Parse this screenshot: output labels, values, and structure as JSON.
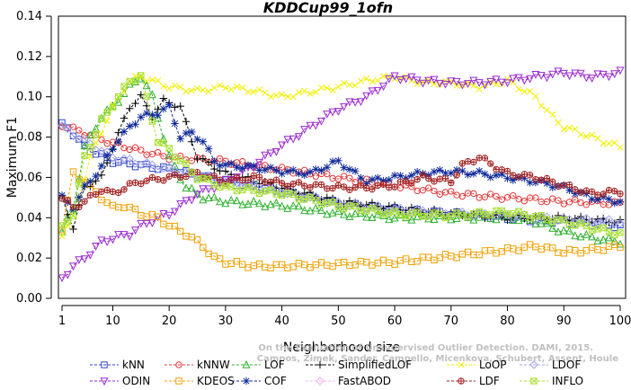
{
  "chart_data": {
    "type": "line",
    "title": "KDDCup99_1ofn",
    "xlabel": "Neighborhood size",
    "ylabel": "Maximum F1",
    "xlim": [
      1,
      100
    ],
    "ylim": [
      0,
      0.14
    ],
    "xticks": [
      1,
      10,
      20,
      30,
      40,
      50,
      60,
      70,
      80,
      90,
      100
    ],
    "yticks": [
      "0.00",
      "0.02",
      "0.04",
      "0.06",
      "0.08",
      "0.10",
      "0.12",
      "0.14"
    ],
    "grid": false,
    "legend_position": "bottom",
    "watermark": [
      "Campos, Zimek, Sander, Campello, Micenkova, Schubert, Assent, Houle",
      "On the Evaluation of Unsupervised Outlier Detection. DAMI, 2015."
    ],
    "series": [
      {
        "name": "kNN",
        "color": "#2a45c8",
        "marker": "square",
        "x": [
          1,
          2,
          5,
          10,
          15,
          20,
          30,
          40,
          50,
          60,
          70,
          80,
          90,
          100
        ],
        "y": [
          0.086,
          0.085,
          0.075,
          0.068,
          0.066,
          0.064,
          0.058,
          0.053,
          0.047,
          0.044,
          0.042,
          0.04,
          0.038,
          0.036
        ]
      },
      {
        "name": "kNNW",
        "color": "#e03a3a",
        "marker": "circle",
        "x": [
          1,
          5,
          10,
          15,
          20,
          30,
          40,
          50,
          60,
          70,
          80,
          90,
          100
        ],
        "y": [
          0.086,
          0.082,
          0.077,
          0.073,
          0.07,
          0.068,
          0.064,
          0.06,
          0.056,
          0.052,
          0.05,
          0.048,
          0.047
        ]
      },
      {
        "name": "LOF",
        "color": "#30b030",
        "marker": "triangle-up",
        "x": [
          1,
          3,
          5,
          8,
          10,
          13,
          15,
          17,
          20,
          23,
          26,
          30,
          40,
          50,
          60,
          70,
          80,
          85,
          90,
          95,
          100
        ],
        "y": [
          0.033,
          0.045,
          0.075,
          0.09,
          0.095,
          0.105,
          0.11,
          0.1,
          0.07,
          0.055,
          0.05,
          0.048,
          0.046,
          0.042,
          0.04,
          0.04,
          0.04,
          0.038,
          0.033,
          0.03,
          0.028
        ]
      },
      {
        "name": "SimplifiedLOF",
        "color": "#000000",
        "marker": "plus",
        "x": [
          1,
          3,
          5,
          8,
          10,
          13,
          15,
          17,
          19,
          22,
          25,
          30,
          40,
          50,
          60,
          70,
          80,
          90,
          100
        ],
        "y": [
          0.05,
          0.035,
          0.055,
          0.06,
          0.075,
          0.095,
          0.1,
          0.09,
          0.098,
          0.095,
          0.07,
          0.062,
          0.055,
          0.048,
          0.045,
          0.042,
          0.04,
          0.04,
          0.038
        ]
      },
      {
        "name": "LoOP",
        "color": "#f0f000",
        "marker": "x",
        "x": [
          1,
          3,
          6,
          10,
          13,
          15,
          17,
          20,
          25,
          30,
          35,
          40,
          50,
          55,
          60,
          65,
          70,
          75,
          80,
          85,
          88,
          90,
          95,
          100
        ],
        "y": [
          0.032,
          0.04,
          0.07,
          0.095,
          0.108,
          0.11,
          0.108,
          0.105,
          0.103,
          0.105,
          0.103,
          0.1,
          0.105,
          0.108,
          0.11,
          0.107,
          0.107,
          0.105,
          0.108,
          0.1,
          0.09,
          0.085,
          0.08,
          0.075
        ]
      },
      {
        "name": "LDOF",
        "color": "#a0a0e8",
        "marker": "diamond",
        "x": [
          1,
          5,
          10,
          15,
          20,
          30,
          40,
          50,
          60,
          70,
          80,
          90,
          100
        ],
        "y": [
          0.085,
          0.078,
          0.07,
          0.067,
          0.064,
          0.058,
          0.053,
          0.047,
          0.044,
          0.042,
          0.041,
          0.039,
          0.038
        ]
      },
      {
        "name": "ODIN",
        "color": "#9a2ad0",
        "marker": "triangle-down",
        "x": [
          1,
          3,
          5,
          8,
          10,
          13,
          15,
          18,
          20,
          25,
          30,
          35,
          40,
          45,
          50,
          55,
          60,
          65,
          70,
          75,
          80,
          85,
          90,
          95,
          100
        ],
        "y": [
          0.01,
          0.016,
          0.02,
          0.028,
          0.03,
          0.032,
          0.036,
          0.04,
          0.042,
          0.052,
          0.058,
          0.066,
          0.076,
          0.085,
          0.094,
          0.1,
          0.11,
          0.108,
          0.107,
          0.107,
          0.108,
          0.11,
          0.112,
          0.11,
          0.112
        ]
      },
      {
        "name": "KDEOS",
        "color": "#f0a000",
        "marker": "square",
        "x": [
          1,
          2,
          3,
          5,
          8,
          10,
          12,
          15,
          18,
          20,
          23,
          26,
          28,
          30,
          35,
          40,
          50,
          60,
          70,
          80,
          85,
          90,
          95,
          100
        ],
        "y": [
          0.035,
          0.048,
          0.062,
          0.058,
          0.05,
          0.045,
          0.046,
          0.042,
          0.04,
          0.036,
          0.032,
          0.026,
          0.02,
          0.018,
          0.016,
          0.016,
          0.017,
          0.018,
          0.021,
          0.024,
          0.026,
          0.023,
          0.024,
          0.026
        ]
      },
      {
        "name": "COF",
        "color": "#102a9a",
        "marker": "star",
        "x": [
          1,
          3,
          5,
          8,
          10,
          13,
          15,
          18,
          20,
          22,
          24,
          26,
          28,
          30,
          35,
          40,
          45,
          50,
          55,
          60,
          65,
          70,
          75,
          80,
          85,
          90,
          95,
          100
        ],
        "y": [
          0.05,
          0.045,
          0.055,
          0.065,
          0.075,
          0.085,
          0.09,
          0.092,
          0.095,
          0.08,
          0.082,
          0.078,
          0.068,
          0.066,
          0.065,
          0.063,
          0.062,
          0.068,
          0.058,
          0.06,
          0.062,
          0.063,
          0.062,
          0.06,
          0.058,
          0.055,
          0.05,
          0.048
        ]
      },
      {
        "name": "FastABOD",
        "color": "#f0b0f0",
        "marker": "diamond",
        "x": [],
        "y": []
      },
      {
        "name": "LDF",
        "color": "#a02020",
        "marker": "circle-plus",
        "x": [
          1,
          3,
          5,
          8,
          10,
          13,
          15,
          20,
          25,
          30,
          35,
          40,
          45,
          50,
          55,
          60,
          65,
          70,
          72,
          75,
          80,
          85,
          90,
          95,
          100
        ],
        "y": [
          0.05,
          0.045,
          0.048,
          0.054,
          0.052,
          0.056,
          0.058,
          0.06,
          0.062,
          0.058,
          0.06,
          0.057,
          0.056,
          0.055,
          0.055,
          0.056,
          0.06,
          0.058,
          0.066,
          0.07,
          0.062,
          0.06,
          0.056,
          0.052,
          0.053
        ]
      },
      {
        "name": "INFLO",
        "color": "#a8e030",
        "marker": "square-x",
        "x": [
          1,
          3,
          5,
          8,
          10,
          13,
          15,
          18,
          20,
          25,
          30,
          40,
          50,
          60,
          70,
          80,
          90,
          100
        ],
        "y": [
          0.035,
          0.042,
          0.07,
          0.088,
          0.096,
          0.108,
          0.11,
          0.078,
          0.074,
          0.06,
          0.055,
          0.052,
          0.046,
          0.042,
          0.041,
          0.043,
          0.038,
          0.032
        ]
      }
    ]
  }
}
